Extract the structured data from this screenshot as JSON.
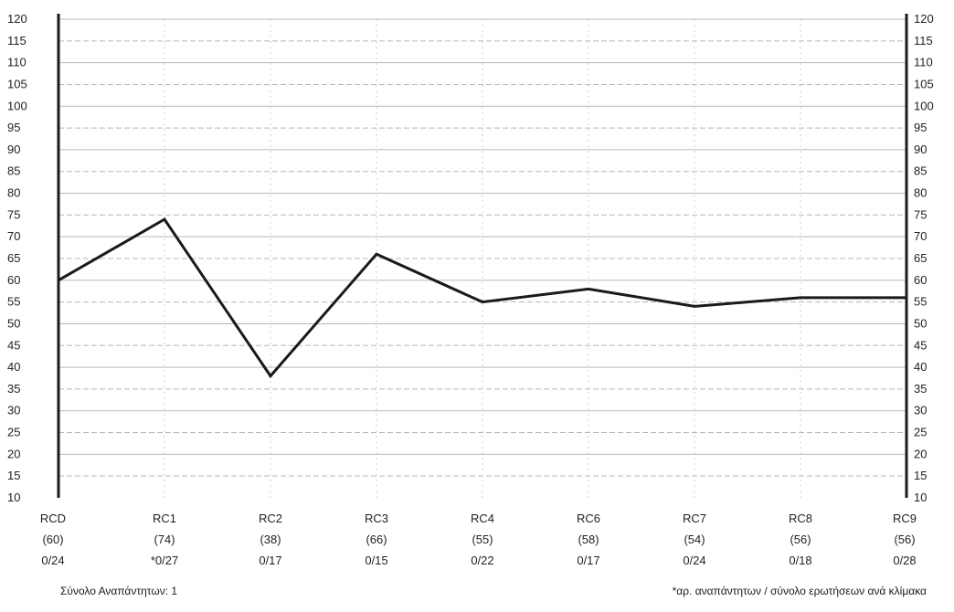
{
  "colors": {
    "line": "#1a1a1a",
    "axis": "#1a1a1a",
    "grid": "#b8b8b8",
    "background": "#ffffff"
  },
  "footer": {
    "left": "Σύνολο Αναπάντητων: 1",
    "right": "*αρ. αναπάντητων / σύνολο ερωτήσεων ανά κλίμακα"
  },
  "chart_data": {
    "type": "line",
    "title": "",
    "xlabel": "",
    "ylabel": "",
    "ylim": [
      10,
      120
    ],
    "yticks": [
      10,
      15,
      20,
      25,
      30,
      35,
      40,
      45,
      50,
      55,
      60,
      65,
      70,
      75,
      80,
      85,
      90,
      95,
      100,
      105,
      110,
      115,
      120
    ],
    "grid": true,
    "categories": [
      "RCD",
      "RC1",
      "RC2",
      "RC3",
      "RC4",
      "RC6",
      "RC7",
      "RC8",
      "RC9"
    ],
    "scores": [
      "(60)",
      "(74)",
      "(38)",
      "(66)",
      "(55)",
      "(58)",
      "(54)",
      "(56)",
      "(56)"
    ],
    "unanswered": [
      "0/24",
      "*0/27",
      "0/17",
      "0/15",
      "0/22",
      "0/17",
      "0/24",
      "0/18",
      "0/28"
    ],
    "series": [
      {
        "values": [
          60,
          74,
          38,
          66,
          55,
          58,
          54,
          56,
          56
        ]
      }
    ]
  }
}
